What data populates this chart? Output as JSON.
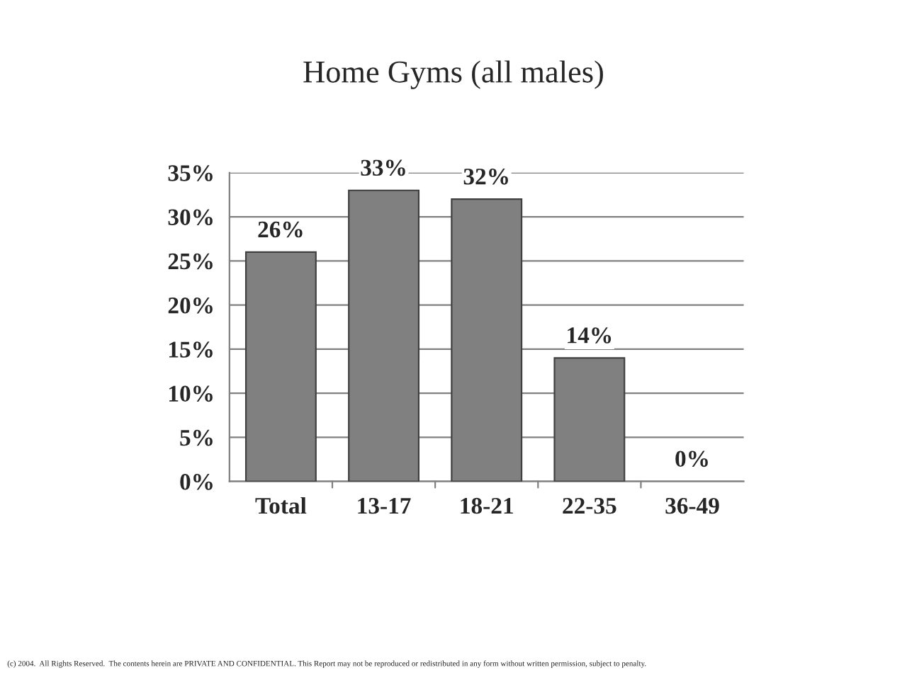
{
  "chart_data": {
    "type": "bar",
    "title": "Home Gyms (all males)",
    "categories": [
      "Total",
      "13-17",
      "18-21",
      "22-35",
      "36-49"
    ],
    "values": [
      26,
      33,
      32,
      14,
      0
    ],
    "value_labels": [
      "26%",
      "33%",
      "32%",
      "14%",
      "0%"
    ],
    "color": "#808080",
    "ylim": [
      0,
      35
    ],
    "yticks": [
      {
        "value": 0,
        "label": "0%"
      },
      {
        "value": 5,
        "label": "5%"
      },
      {
        "value": 10,
        "label": "10%"
      },
      {
        "value": 15,
        "label": "15%"
      },
      {
        "value": 20,
        "label": "20%"
      },
      {
        "value": 25,
        "label": "25%"
      },
      {
        "value": 30,
        "label": "30%"
      },
      {
        "value": 35,
        "label": "35%"
      }
    ],
    "grid": "y",
    "annotations": [
      "(c) 2004.  All Rights Reserved.  The contents herein are PRIVATE AND CONFIDENTIAL. This Report may not be reproduced or redistributed in any form without written permission, subject to penalty."
    ]
  }
}
